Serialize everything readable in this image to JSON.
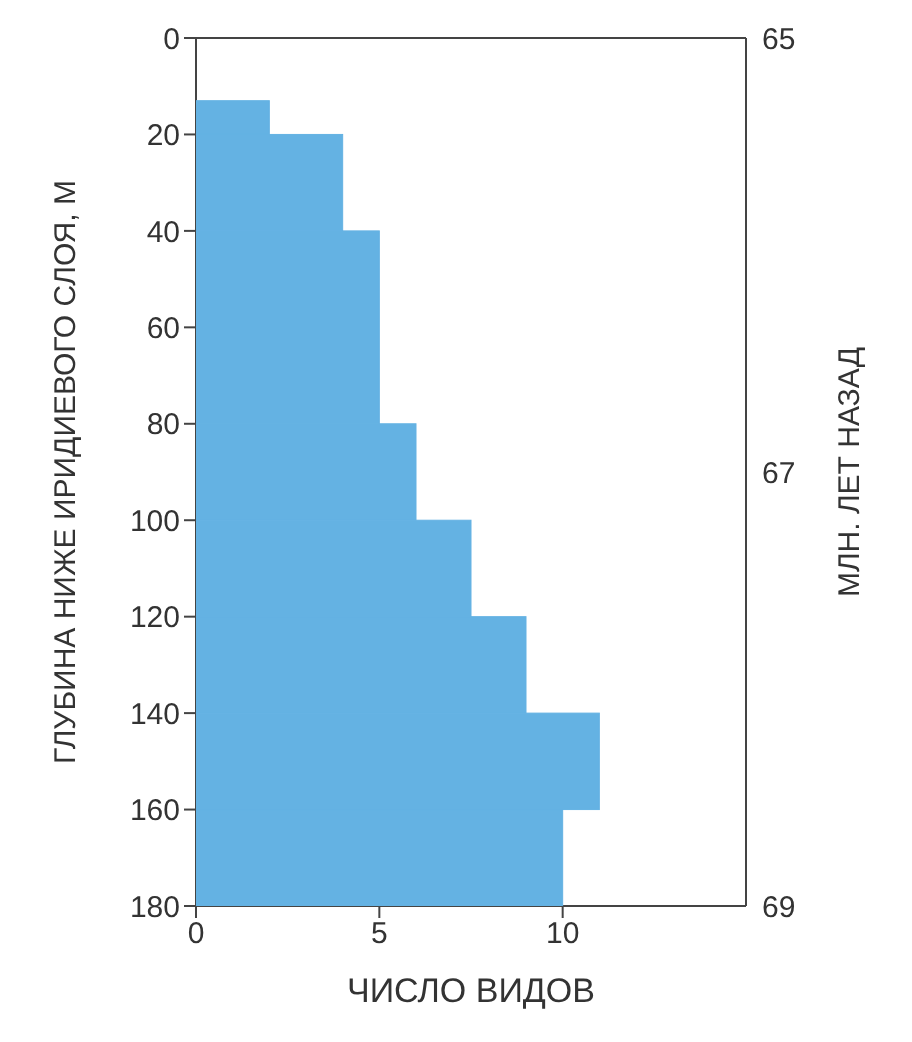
{
  "chart_data": {
    "type": "histogram",
    "orientation": "horizontal",
    "xlabel": "ЧИСЛО ВИДОВ",
    "ylabel": "ГЛУБИНА НИЖЕ ИРИДИЕВОГО СЛОЯ, М",
    "y2label": "МЛН. ЛЕТ НАЗАД",
    "bins": [
      13,
      20,
      40,
      80,
      100,
      120,
      140,
      160,
      180
    ],
    "values": [
      2,
      4,
      5,
      6,
      7.5,
      9,
      11,
      10
    ],
    "color": "#64b2e3",
    "xlim": [
      0,
      15
    ],
    "xticks": [
      0,
      5,
      10
    ],
    "ylim": [
      180,
      0
    ],
    "yticks": [
      0,
      20,
      40,
      60,
      80,
      100,
      120,
      140,
      160,
      180
    ],
    "y2lim": [
      69,
      65
    ],
    "y2ticks": [
      65,
      67,
      69
    ],
    "grid": false,
    "legend": false
  }
}
